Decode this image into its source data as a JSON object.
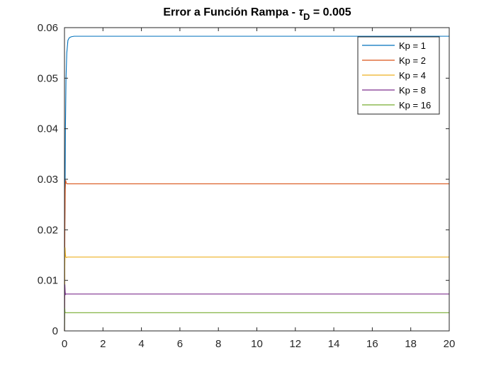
{
  "chart_data": {
    "type": "line",
    "title": {
      "prefix": "Error a Función Rampa - ",
      "symbol": "τ",
      "subscript": "D",
      "suffix": " = 0.005"
    },
    "xlabel": "",
    "ylabel": "",
    "xlim": [
      0,
      20
    ],
    "ylim": [
      0,
      0.06
    ],
    "x_ticks": [
      0,
      2,
      4,
      6,
      8,
      10,
      12,
      14,
      16,
      18,
      20
    ],
    "y_ticks": [
      0,
      0.01,
      0.02,
      0.03,
      0.04,
      0.05,
      0.06
    ],
    "y_tick_labels": [
      "0",
      "0.01",
      "0.02",
      "0.03",
      "0.04",
      "0.05",
      "0.06"
    ],
    "grid": false,
    "legend_position": "top-right",
    "series": [
      {
        "name": "Kp = 1",
        "color": "#0072BD",
        "x": [
          0,
          0.02,
          0.05,
          0.08,
          0.12,
          0.18,
          0.25,
          0.35,
          0.5,
          1,
          20
        ],
        "y": [
          0,
          0.022,
          0.04,
          0.05,
          0.055,
          0.0575,
          0.058,
          0.0582,
          0.0583,
          0.0583,
          0.0583
        ]
      },
      {
        "name": "Kp = 2",
        "color": "#D95319",
        "x": [
          0,
          0.02,
          0.04,
          0.06,
          0.09,
          0.13,
          0.2,
          0.3,
          20
        ],
        "y": [
          0,
          0.02,
          0.028,
          0.0298,
          0.0293,
          0.0291,
          0.0291,
          0.0291,
          0.0291
        ]
      },
      {
        "name": "Kp = 4",
        "color": "#EDB120",
        "x": [
          0,
          0.015,
          0.03,
          0.05,
          0.07,
          0.1,
          0.15,
          0.25,
          20
        ],
        "y": [
          0,
          0.012,
          0.0165,
          0.0152,
          0.0146,
          0.0145,
          0.0146,
          0.0146,
          0.0146
        ]
      },
      {
        "name": "Kp = 8",
        "color": "#7E2F8E",
        "x": [
          0,
          0.01,
          0.02,
          0.035,
          0.05,
          0.08,
          0.12,
          0.2,
          20
        ],
        "y": [
          0,
          0.006,
          0.0092,
          0.0078,
          0.0072,
          0.0073,
          0.0073,
          0.0073,
          0.0073
        ]
      },
      {
        "name": "Kp = 16",
        "color": "#77AC30",
        "x": [
          0,
          0.008,
          0.016,
          0.025,
          0.04,
          0.06,
          0.1,
          0.2,
          20
        ],
        "y": [
          0,
          0.003,
          0.0045,
          0.0038,
          0.0036,
          0.0036,
          0.0036,
          0.0036,
          0.0036
        ]
      }
    ]
  }
}
